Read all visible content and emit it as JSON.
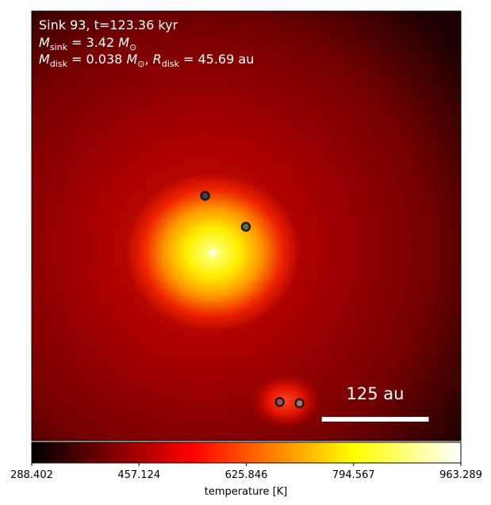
{
  "chart_data": {
    "type": "heatmap",
    "title_lines": {
      "line1": "Sink 93, t=123.36 kyr",
      "sink_mass": "3.42",
      "disk_mass": "0.038",
      "disk_radius": "45.69"
    },
    "scale_bar_label": "125 au",
    "colorbar": {
      "label": "temperature [K]",
      "vmin": 288.402,
      "vmax": 963.289,
      "ticks": [
        "288.402",
        "457.124",
        "625.846",
        "794.567",
        "963.289"
      ],
      "colormap": "hot"
    },
    "sinks": [
      {
        "name": "sink-primary",
        "x": 0.404,
        "y": 0.57,
        "fill": "#444444"
      },
      {
        "name": "sink-2",
        "x": 0.499,
        "y": 0.498,
        "fill": "#6b6b3a"
      },
      {
        "name": "sink-3",
        "x": 0.578,
        "y": 0.09,
        "fill": "#a05050"
      },
      {
        "name": "sink-4",
        "x": 0.624,
        "y": 0.087,
        "fill": "#b07070"
      }
    ],
    "scale_bar": {
      "x_start": 0.676,
      "x_end": 0.925,
      "y": 0.05
    },
    "colors": {
      "low": "#000000",
      "mid": "#ff0000",
      "high": "#ffff00",
      "top": "#ffffff"
    }
  }
}
